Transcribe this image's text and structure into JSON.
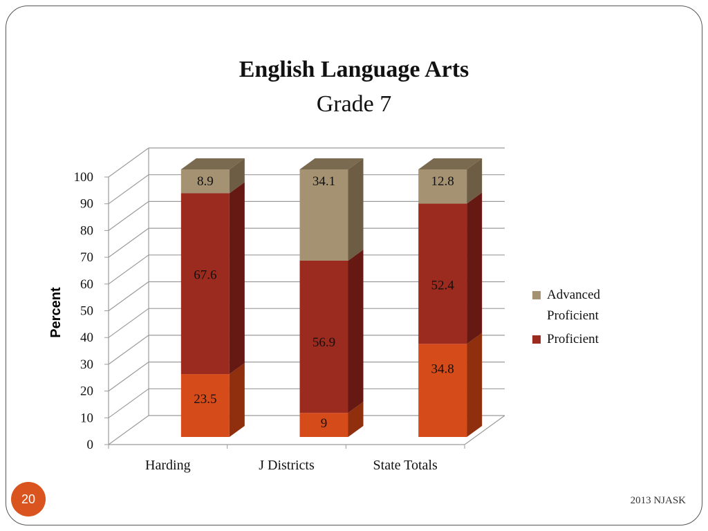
{
  "slide": {
    "page_number": "20",
    "footer": "2013 NJASK"
  },
  "chart_data": {
    "type": "bar",
    "stacked": true,
    "three_d": true,
    "title": "English Language Arts",
    "subtitle": "Grade 7",
    "ylabel": "Percent",
    "xlabel": "",
    "ylim": [
      0,
      100
    ],
    "yticks": [
      0,
      10,
      20,
      30,
      40,
      50,
      60,
      70,
      80,
      90,
      100
    ],
    "grid": true,
    "legend_position": "right",
    "categories": [
      "Harding",
      "J Districts",
      "State Totals"
    ],
    "series": [
      {
        "name": "",
        "values": [
          23.5,
          9,
          34.8
        ],
        "color": "#d64b1a",
        "side_color": "#8f2f0e",
        "top_color": "#e8642e"
      },
      {
        "name": "Proficient",
        "values": [
          67.6,
          56.9,
          52.4
        ],
        "color": "#9b2a1f",
        "side_color": "#661812",
        "top_color": "#b13a2c"
      },
      {
        "name": "Advanced Proficient",
        "values": [
          8.9,
          34.1,
          12.8
        ],
        "color": "#a59272",
        "side_color": "#6e5d45",
        "top_color": "#7a6a50"
      }
    ]
  }
}
